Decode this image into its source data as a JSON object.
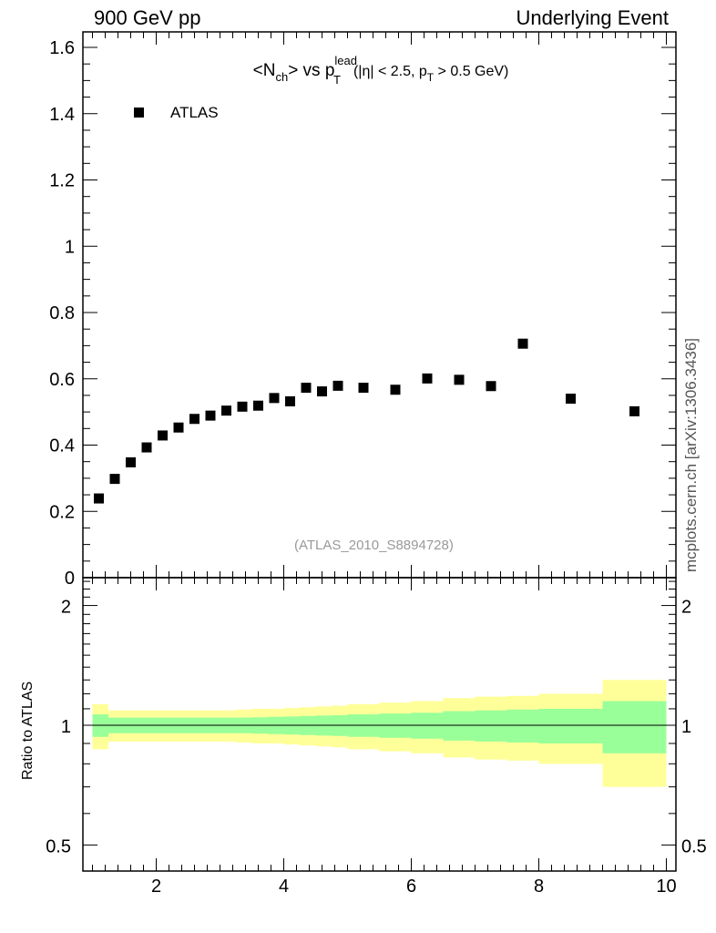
{
  "header": {
    "left": "900 GeV pp",
    "right": "Underlying Event"
  },
  "sidebar": {
    "text": "mcplots.cern.ch [arXiv:1306.3436]"
  },
  "chart_data": {
    "type": "scatter",
    "title_parts": {
      "main": "<N",
      "main_sub": "ch",
      "vs": "> vs p",
      "sup": "lead",
      "sub": "T",
      "cut_open": "(|η| < 2.5, p",
      "cut_sub": "T",
      "cut_close": " > 0.5 GeV)"
    },
    "legend": [
      {
        "name": "ATLAS",
        "marker": "square",
        "color": "#000000"
      }
    ],
    "analysis_label": "(ATLAS_2010_S8894728)",
    "x": [
      1.1,
      1.35,
      1.6,
      1.85,
      2.1,
      2.35,
      2.6,
      2.85,
      3.1,
      3.35,
      3.6,
      3.85,
      4.1,
      4.35,
      4.6,
      4.85,
      5.25,
      5.75,
      6.25,
      6.75,
      7.25,
      7.75,
      8.5,
      9.5
    ],
    "series": [
      {
        "name": "ATLAS",
        "values": [
          0.239,
          0.298,
          0.348,
          0.393,
          0.429,
          0.453,
          0.479,
          0.489,
          0.504,
          0.516,
          0.519,
          0.542,
          0.532,
          0.573,
          0.562,
          0.579,
          0.573,
          0.567,
          0.601,
          0.597,
          0.578,
          0.706,
          0.54,
          0.502
        ]
      }
    ],
    "main_ylim": [
      0,
      1.6
    ],
    "main_yticks": [
      "0",
      "0.2",
      "0.4",
      "0.6",
      "0.8",
      "1",
      "1.2",
      "1.4",
      "1.6"
    ],
    "xlim": [
      0.85,
      10.15
    ],
    "xticks": [
      "2",
      "4",
      "6",
      "8",
      "10"
    ],
    "ratio": {
      "ylabel": "Ratio to ATLAS",
      "ylim": [
        0.43,
        2.35
      ],
      "yticks": [
        "0.5",
        "1",
        "2"
      ],
      "reference": 1,
      "bin_edges": [
        1.0,
        1.25,
        1.5,
        1.75,
        2.0,
        2.25,
        2.5,
        2.75,
        3.0,
        3.25,
        3.5,
        3.75,
        4.0,
        4.25,
        4.5,
        4.75,
        5.0,
        5.5,
        6.0,
        6.5,
        7.0,
        7.5,
        8.0,
        9.0,
        10.0
      ],
      "green_band": [
        0.065,
        0.045,
        0.045,
        0.045,
        0.045,
        0.045,
        0.045,
        0.045,
        0.045,
        0.045,
        0.047,
        0.05,
        0.052,
        0.055,
        0.058,
        0.06,
        0.065,
        0.07,
        0.075,
        0.085,
        0.09,
        0.095,
        0.1,
        0.15
      ],
      "yellow_band": [
        0.13,
        0.09,
        0.09,
        0.09,
        0.09,
        0.09,
        0.09,
        0.09,
        0.09,
        0.095,
        0.1,
        0.1,
        0.105,
        0.11,
        0.115,
        0.12,
        0.13,
        0.14,
        0.15,
        0.17,
        0.18,
        0.185,
        0.2,
        0.3
      ]
    },
    "colors": {
      "green": "#99ff99",
      "yellow": "#ffff99",
      "marker": "#000000"
    }
  }
}
